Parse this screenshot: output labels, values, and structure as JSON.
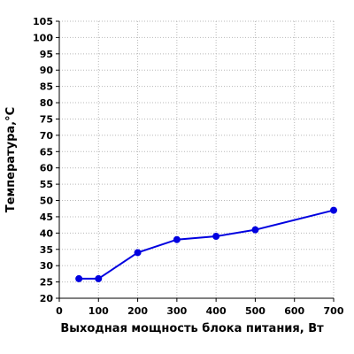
{
  "chart_data": {
    "type": "line",
    "title": "",
    "xlabel": "Выходная мощность блока питания, Вт",
    "ylabel": "Температура,°C",
    "xlim": [
      0,
      700
    ],
    "ylim": [
      20,
      105
    ],
    "x_ticks": [
      0,
      100,
      200,
      300,
      400,
      500,
      600,
      700
    ],
    "y_ticks": [
      20,
      25,
      30,
      35,
      40,
      45,
      50,
      55,
      60,
      65,
      70,
      75,
      80,
      85,
      90,
      95,
      100,
      105
    ],
    "grid": true,
    "colors": {
      "series": "#0000e0"
    },
    "series": [
      {
        "x": [
          50,
          100,
          200,
          300,
          400,
          500,
          700
        ],
        "y": [
          26,
          26,
          34,
          38,
          39,
          41,
          47
        ]
      }
    ]
  }
}
